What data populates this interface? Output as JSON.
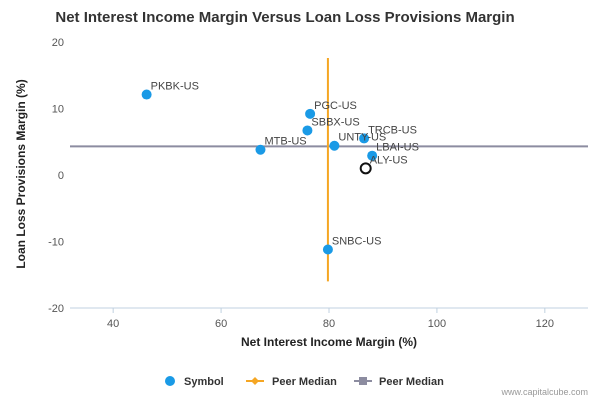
{
  "chart_data": {
    "type": "scatter",
    "title": "Net Interest Income Margin Versus Loan Loss Provisions Margin",
    "xlabel": "Net Interest Income Margin (%)",
    "ylabel": "Loan Loss Provisions Margin (%)",
    "xlim": [
      32,
      128
    ],
    "ylim": [
      -20,
      20
    ],
    "x_ticks": [
      40,
      60,
      80,
      100,
      120
    ],
    "y_ticks": [
      20,
      10,
      0,
      -10,
      -20
    ],
    "x_tick_labels": [
      "40",
      "60",
      "80",
      "100",
      "120"
    ],
    "y_tick_labels": [
      "20",
      "10",
      "0",
      "-10",
      "-20"
    ],
    "series": [
      {
        "name": "Symbol",
        "color": "#1a9ae6",
        "points": [
          {
            "label": "PKBK-US",
            "x": 46.2,
            "y": 12.1
          },
          {
            "label": "PGC-US",
            "x": 76.5,
            "y": 9.2
          },
          {
            "label": "SBBX-US",
            "x": 76.0,
            "y": 6.7
          },
          {
            "label": "TRCB-US",
            "x": 86.5,
            "y": 5.5
          },
          {
            "label": "UNTY-US",
            "x": 81.0,
            "y": 4.4
          },
          {
            "label": "MTB-US",
            "x": 67.3,
            "y": 3.8
          },
          {
            "label": "LBAI-US",
            "x": 88.0,
            "y": 2.9
          },
          {
            "label": "SNBC-US",
            "x": 79.8,
            "y": -11.2
          }
        ]
      }
    ],
    "highlight": {
      "label": "ALY-US",
      "x": 86.8,
      "y": 1.0
    },
    "peer_median_x": {
      "name": "Peer Median",
      "value": 79.8,
      "y_range": [
        -16,
        17.6
      ],
      "color": "#f5a623"
    },
    "peer_median_y": {
      "name": "Peer Median",
      "value": 4.3,
      "color": "#8c8ca0"
    },
    "legend": {
      "placement": "bottom-center",
      "items": [
        "Symbol",
        "Peer Median",
        "Peer Median"
      ]
    },
    "credit": "www.capitalcube.com",
    "grid": false
  }
}
